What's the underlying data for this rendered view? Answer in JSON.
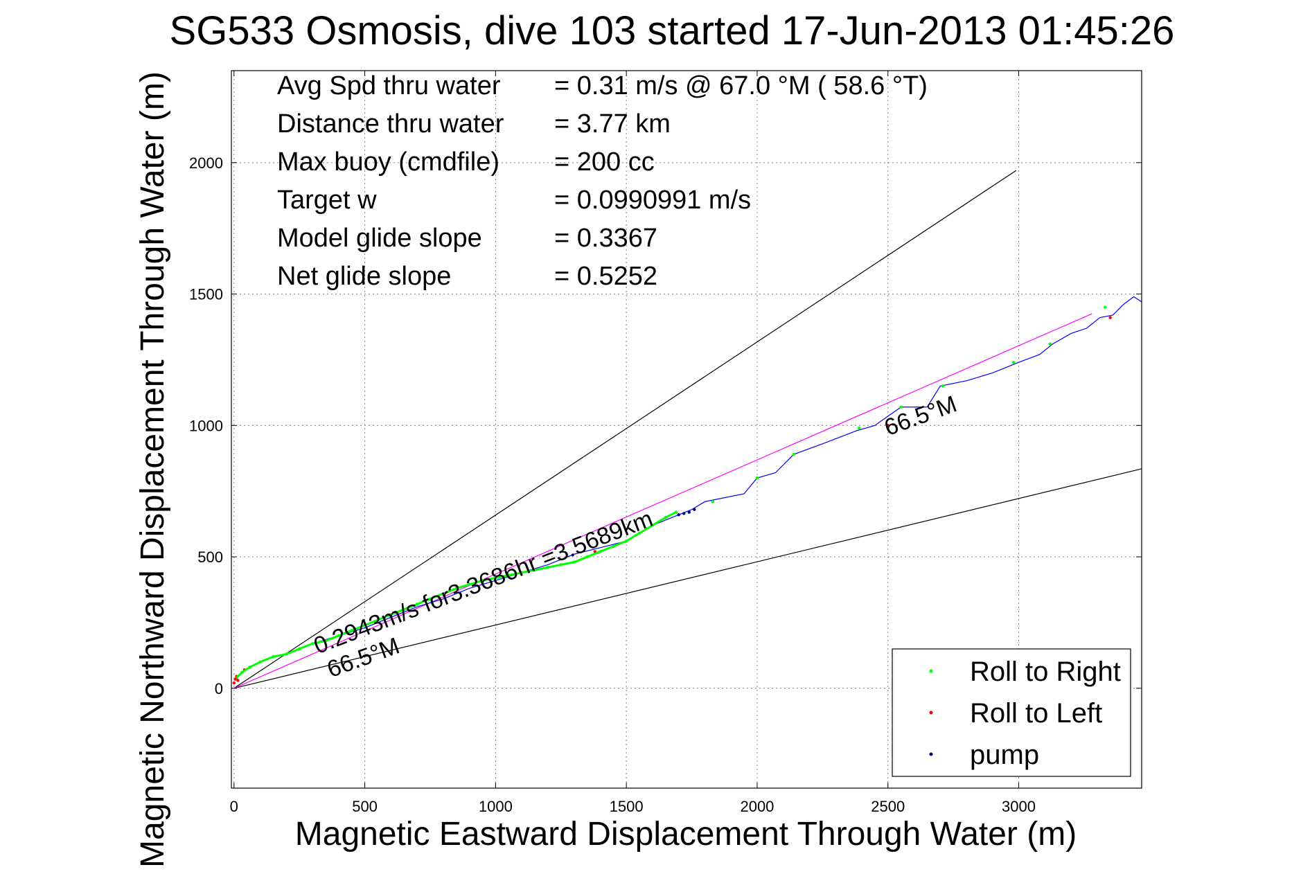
{
  "chart_data": {
    "type": "line",
    "title": "SG533 Osmosis, dive 103 started 17-Jun-2013 01:45:26",
    "xlabel": "Magnetic Eastward Displacement Through Water (m)",
    "ylabel": "Magnetic Northward Displacement Through Water (m)",
    "xlim": [
      -10,
      3470
    ],
    "ylim": [
      -380,
      2350
    ],
    "xticks": [
      0,
      500,
      1000,
      1500,
      2000,
      2500,
      3000
    ],
    "yticks": [
      0,
      500,
      1000,
      1500,
      2000
    ],
    "grid": true,
    "info": [
      {
        "label": "Avg Spd thru water",
        "value": "=  0.31 m/s @  67.0 °M ( 58.6 °T)"
      },
      {
        "label": "Distance thru water",
        "value": "=  3.77 km"
      },
      {
        "label": "Max buoy (cmdfile)",
        "value": "= 200 cc"
      },
      {
        "label": "Target w",
        "value": "= 0.0990991 m/s"
      },
      {
        "label": "Model glide slope",
        "value": "= 0.3367"
      },
      {
        "label": "Net glide slope",
        "value": "= 0.5252"
      }
    ],
    "reference_lines": [
      {
        "name": "upper-bound",
        "color": "#000000",
        "points": [
          [
            0,
            0
          ],
          [
            2990,
            1970
          ]
        ]
      },
      {
        "name": "lower-bound",
        "color": "#000000",
        "points": [
          [
            0,
            0
          ],
          [
            3470,
            835
          ]
        ]
      },
      {
        "name": "heading-line",
        "color": "#ff00ff",
        "points": [
          [
            0,
            0
          ],
          [
            3280,
            1425
          ]
        ]
      }
    ],
    "annotations": [
      {
        "text": "0.2943m/s for3.3686hr =3.5689km",
        "x": 320,
        "y": 130,
        "angle_deg": -21
      },
      {
        "text": "66.5°M",
        "x": 370,
        "y": 40,
        "angle_deg": -20
      },
      {
        "text": "66.5°M",
        "x": 2500,
        "y": 960,
        "angle_deg": -20
      }
    ],
    "series": [
      {
        "name": "track",
        "color": "#0000ff",
        "x": [
          0,
          20,
          60,
          120,
          200,
          300,
          400,
          500,
          600,
          700,
          800,
          900,
          1000,
          1100,
          1200,
          1300,
          1380,
          1500,
          1600,
          1700,
          1750,
          1800,
          1950,
          2000,
          2070,
          2140,
          2250,
          2380,
          2450,
          2550,
          2650,
          2700,
          2800,
          2900,
          3000,
          3080,
          3130,
          3200,
          3260,
          3310,
          3360,
          3400,
          3440,
          3470
        ],
        "y": [
          30,
          50,
          80,
          110,
          130,
          170,
          200,
          230,
          270,
          310,
          340,
          380,
          410,
          440,
          470,
          510,
          530,
          560,
          620,
          660,
          680,
          710,
          740,
          800,
          820,
          890,
          930,
          980,
          1000,
          1070,
          1070,
          1150,
          1170,
          1200,
          1240,
          1270,
          1310,
          1350,
          1370,
          1410,
          1420,
          1460,
          1490,
          1470
        ]
      },
      {
        "name": "Roll to Right",
        "color": "#00ff00",
        "x": [
          10,
          30,
          60,
          100,
          150,
          200,
          250,
          300,
          350,
          400,
          450,
          500,
          550,
          600,
          650,
          700,
          750,
          800,
          850,
          900,
          950,
          1000,
          1050,
          1100,
          1150,
          1200,
          1250,
          1300,
          1350,
          1400,
          1450,
          1500,
          1550,
          1600,
          1650,
          1690,
          1830,
          2000,
          2140,
          2390,
          2550,
          2710,
          2980,
          3120,
          3330
        ],
        "y": [
          40,
          60,
          80,
          100,
          120,
          130,
          150,
          170,
          180,
          200,
          220,
          240,
          260,
          280,
          300,
          320,
          340,
          360,
          380,
          395,
          410,
          420,
          430,
          440,
          450,
          460,
          470,
          480,
          500,
          520,
          540,
          560,
          590,
          620,
          650,
          670,
          710,
          800,
          890,
          990,
          1070,
          1150,
          1240,
          1310,
          1450
        ]
      },
      {
        "name": "Roll to Left",
        "color": "#ff0000",
        "x": [
          0,
          5,
          10,
          15,
          40,
          1380,
          1700,
          2500,
          3350
        ],
        "y": [
          20,
          35,
          45,
          30,
          70,
          520,
          660,
          1000,
          1410
        ]
      },
      {
        "name": "pump",
        "color": "#000080",
        "x": [
          1700,
          1720,
          1740,
          1760
        ],
        "y": [
          660,
          665,
          670,
          680
        ]
      }
    ],
    "legend": {
      "placement": "bottom-right",
      "entries": [
        {
          "label": "Roll to Right",
          "color": "#00ff00"
        },
        {
          "label": "Roll to Left",
          "color": "#ff0000"
        },
        {
          "label": "pump",
          "color": "#000080"
        }
      ]
    }
  }
}
